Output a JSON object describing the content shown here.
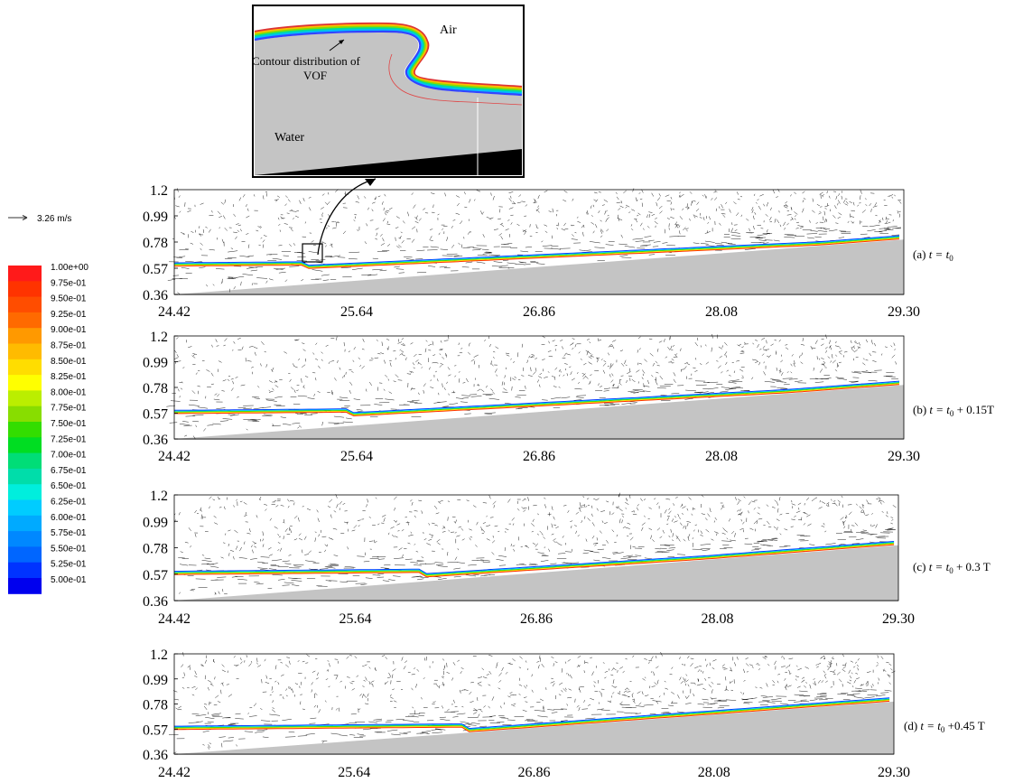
{
  "velocity_scale": {
    "label": "3.26 m/s"
  },
  "colorbar": {
    "levels": [
      "1.00e+00",
      "9.75e-01",
      "9.50e-01",
      "9.25e-01",
      "9.00e-01",
      "8.75e-01",
      "8.50e-01",
      "8.25e-01",
      "8.00e-01",
      "7.75e-01",
      "7.50e-01",
      "7.25e-01",
      "7.00e-01",
      "6.75e-01",
      "6.50e-01",
      "6.25e-01",
      "6.00e-01",
      "5.75e-01",
      "5.50e-01",
      "5.25e-01",
      "5.00e-01"
    ],
    "colors": [
      "#ff1a1a",
      "#ff3300",
      "#ff4d00",
      "#ff6a00",
      "#ff9900",
      "#ffbb00",
      "#ffdd00",
      "#ffff00",
      "#bbee00",
      "#88dd00",
      "#33dd00",
      "#00dd22",
      "#00dd77",
      "#00ddaa",
      "#00eedd",
      "#00ccff",
      "#00aaff",
      "#0088ff",
      "#0066ff",
      "#0033ff",
      "#0000ee"
    ]
  },
  "inset": {
    "air_label": "Air",
    "water_label": "Water",
    "annotation_lines": [
      "Contour distribution of",
      "VOF"
    ]
  },
  "panels": [
    {
      "id": "a",
      "label_prefix": "(a) ",
      "label_rest": "t = t",
      "label_sub": "0",
      "label_suffix": ""
    },
    {
      "id": "b",
      "label_prefix": "(b) ",
      "label_rest": "t = t",
      "label_sub": "0",
      "label_suffix": " + 0.15T"
    },
    {
      "id": "c",
      "label_prefix": "(c) ",
      "label_rest": "t = t",
      "label_sub": "0",
      "label_suffix": " + 0.3 T"
    },
    {
      "id": "d",
      "label_prefix": "(d) ",
      "label_rest": "t = t",
      "label_sub": "0",
      "label_suffix": " +0.45 T"
    }
  ],
  "axes": {
    "x_ticks": [
      "24.42",
      "25.64",
      "26.86",
      "28.08",
      "29.30"
    ],
    "y_ticks": [
      "1.2",
      "0.99",
      "0.78",
      "0.57",
      "0.36"
    ],
    "x_range": [
      24.42,
      29.3
    ],
    "y_range": [
      0.36,
      1.2
    ]
  },
  "colors": {
    "water": "#c4c4c4",
    "arrows": "#222222",
    "inset_surface": [
      "#dd3333",
      "#ffbb00",
      "#88dd00",
      "#00dd99",
      "#00bbff",
      "#3344ff"
    ]
  }
}
